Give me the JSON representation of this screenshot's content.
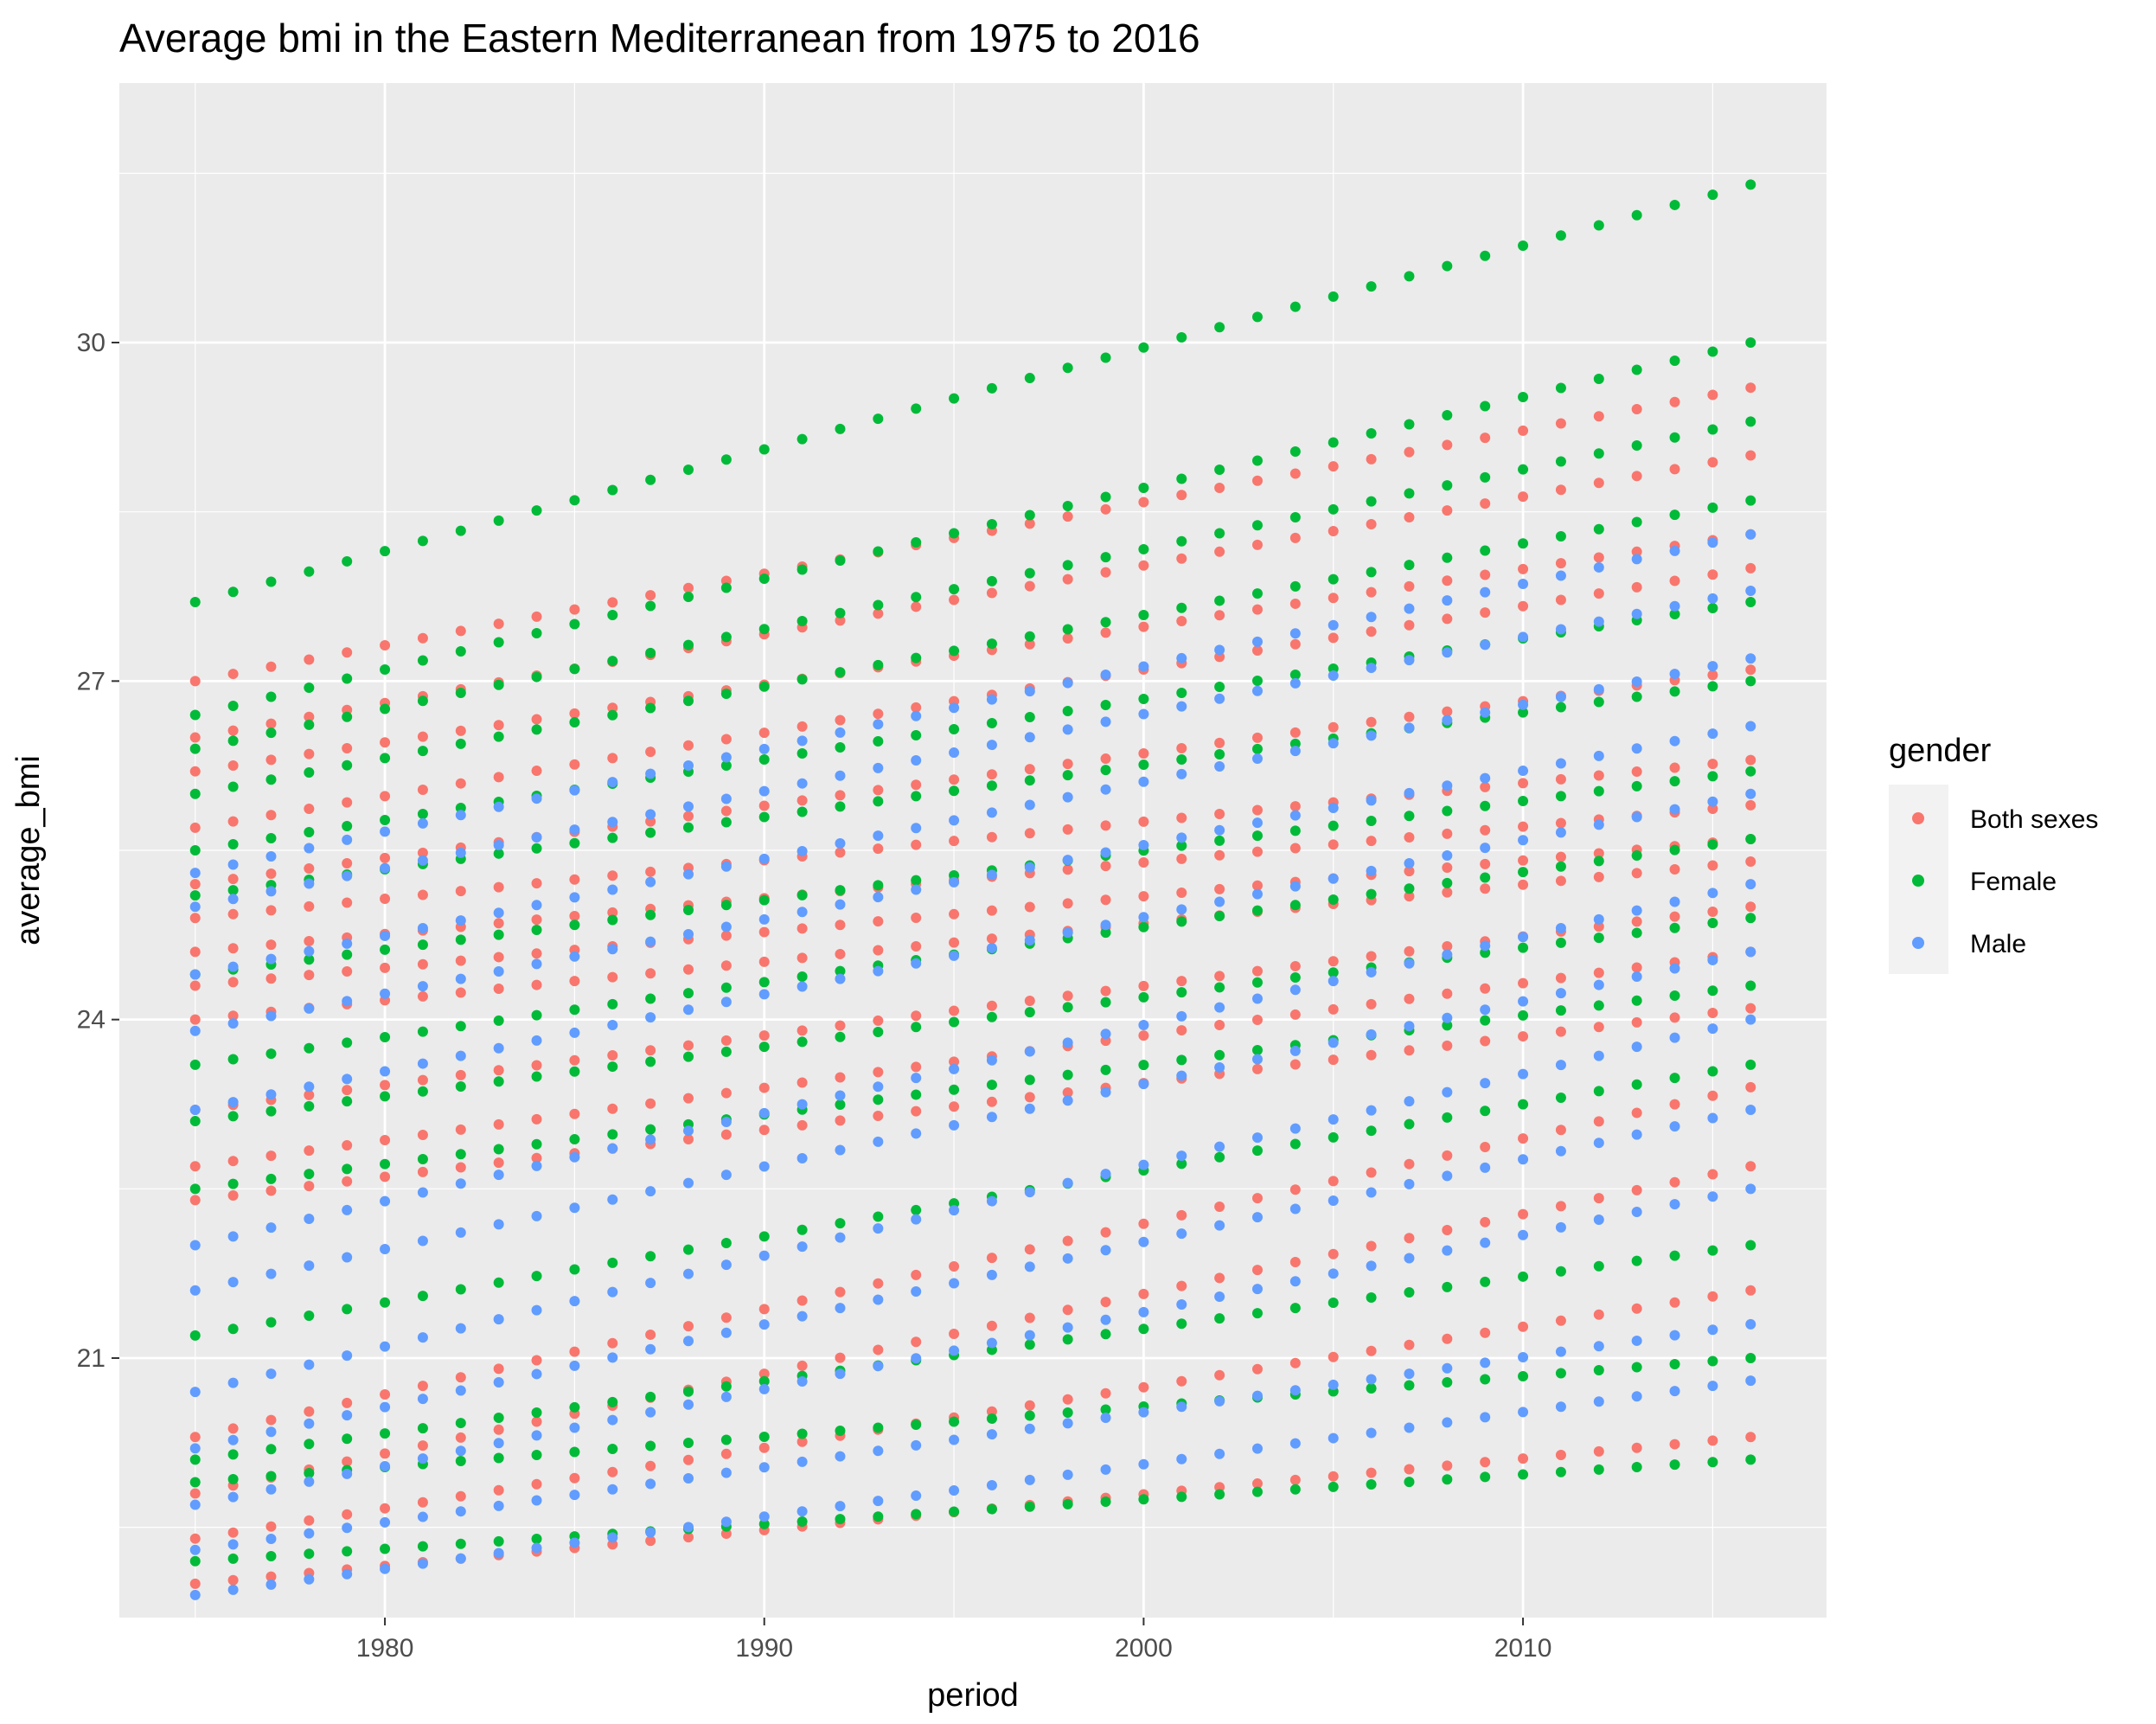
{
  "chart_data": {
    "type": "scatter",
    "title": "Average bmi in the Eastern Mediterranean from 1975 to 2016",
    "xlabel": "period",
    "ylabel": "average_bmi",
    "xlim": [
      1973,
      2018
    ],
    "ylim": [
      18.7,
      32.3
    ],
    "x_ticks": [
      1980,
      1990,
      2000,
      2010
    ],
    "x_tick_labels": [
      "1980",
      "1990",
      "2000",
      "2010"
    ],
    "y_ticks": [
      21,
      24,
      27,
      30
    ],
    "y_tick_labels": [
      "21",
      "24",
      "27",
      "30"
    ],
    "y_minor_ticks": [
      19.5,
      22.5,
      25.5,
      28.5,
      31.5
    ],
    "grid": true,
    "legend": {
      "title": "gender",
      "placement": "right",
      "entries": [
        {
          "name": "Both sexes",
          "color": "#F8766D"
        },
        {
          "name": "Female",
          "color": "#00BA38"
        },
        {
          "name": "Male",
          "color": "#619CFF"
        }
      ]
    },
    "series": [
      {
        "name": "Both sexes",
        "color": "#F8766D",
        "profiles": [
          [
            19.0,
            20.3
          ],
          [
            19.4,
            21.6
          ],
          [
            19.8,
            22.7
          ],
          [
            20.3,
            23.4
          ],
          [
            22.4,
            24.1
          ],
          [
            22.7,
            24.6
          ],
          [
            23.2,
            25.0
          ],
          [
            24.0,
            25.4
          ],
          [
            24.3,
            25.6
          ],
          [
            24.6,
            25.9
          ],
          [
            24.9,
            26.3
          ],
          [
            25.2,
            27.1
          ],
          [
            25.7,
            28.0
          ],
          [
            26.2,
            28.3
          ],
          [
            26.5,
            29.0
          ],
          [
            27.0,
            29.6
          ]
        ]
      },
      {
        "name": "Female",
        "color": "#00BA38",
        "profiles": [
          [
            19.2,
            20.1
          ],
          [
            19.9,
            21.0
          ],
          [
            20.1,
            22.0
          ],
          [
            21.2,
            23.6
          ],
          [
            22.5,
            24.3
          ],
          [
            23.1,
            24.9
          ],
          [
            23.6,
            25.6
          ],
          [
            24.4,
            26.2
          ],
          [
            25.1,
            27.0
          ],
          [
            25.5,
            27.7
          ],
          [
            26.0,
            28.6
          ],
          [
            26.4,
            29.3
          ],
          [
            26.7,
            30.0
          ],
          [
            27.7,
            31.4
          ]
        ]
      },
      {
        "name": "Male",
        "color": "#619CFF",
        "profiles": [
          [
            18.9,
            20.8
          ],
          [
            19.3,
            21.3
          ],
          [
            19.7,
            22.5
          ],
          [
            20.2,
            23.2
          ],
          [
            20.7,
            24.0
          ],
          [
            21.6,
            24.6
          ],
          [
            22.0,
            25.2
          ],
          [
            23.2,
            26.0
          ],
          [
            23.9,
            26.6
          ],
          [
            24.4,
            27.2
          ],
          [
            25.0,
            27.8
          ],
          [
            25.3,
            28.3
          ]
        ]
      }
    ]
  }
}
